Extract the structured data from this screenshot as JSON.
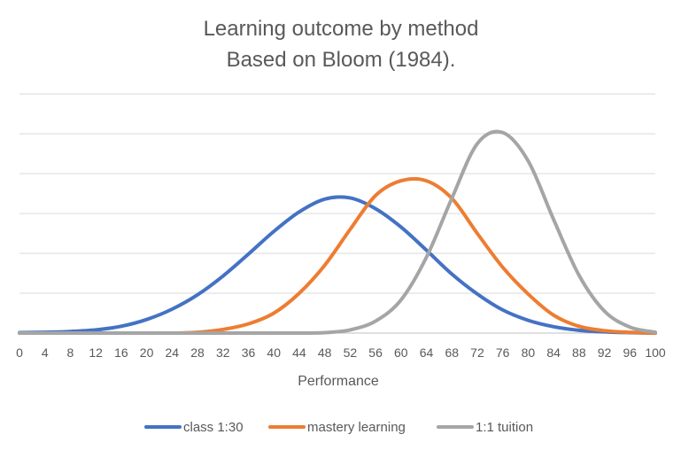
{
  "chart_data": {
    "type": "line",
    "title": "Learning outcome by method",
    "subtitle": "Based on Bloom (1984).",
    "xlabel": "Performance",
    "ylabel": "",
    "xlim": [
      0,
      100
    ],
    "ylim": [
      0,
      6
    ],
    "y_tick_labels_shown": false,
    "grid": true,
    "legend": "bottom",
    "x_ticks": [
      0,
      4,
      8,
      12,
      16,
      20,
      24,
      28,
      32,
      36,
      40,
      44,
      48,
      52,
      56,
      60,
      64,
      68,
      72,
      76,
      80,
      84,
      88,
      92,
      96,
      100
    ],
    "x": [
      0,
      4,
      8,
      12,
      16,
      20,
      24,
      28,
      32,
      36,
      40,
      44,
      48,
      52,
      56,
      60,
      64,
      68,
      72,
      76,
      80,
      84,
      88,
      92,
      96,
      100
    ],
    "series": [
      {
        "name": "class 1:30",
        "color": "#4472C4",
        "values": [
          0.01,
          0.02,
          0.04,
          0.08,
          0.17,
          0.34,
          0.6,
          0.96,
          1.43,
          1.98,
          2.55,
          3.04,
          3.36,
          3.39,
          3.12,
          2.66,
          2.08,
          1.48,
          0.98,
          0.58,
          0.32,
          0.16,
          0.07,
          0.03,
          0.01,
          0.0
        ]
      },
      {
        "name": "mastery learning",
        "color": "#ED7D31",
        "values": [
          0.0,
          0.0,
          0.0,
          0.0,
          0.0,
          0.0,
          0.0,
          0.02,
          0.09,
          0.23,
          0.5,
          1.0,
          1.7,
          2.6,
          3.45,
          3.82,
          3.82,
          3.38,
          2.5,
          1.65,
          0.98,
          0.45,
          0.17,
          0.06,
          0.02,
          0.0
        ]
      },
      {
        "name": "1:1 tuition",
        "color": "#A5A5A5",
        "values": [
          0.0,
          0.0,
          0.0,
          0.0,
          0.0,
          0.0,
          0.0,
          0.0,
          0.0,
          0.0,
          0.0,
          0.0,
          0.01,
          0.08,
          0.3,
          0.83,
          1.9,
          3.38,
          4.75,
          5.03,
          4.32,
          2.85,
          1.45,
          0.55,
          0.15,
          0.02
        ]
      }
    ]
  }
}
